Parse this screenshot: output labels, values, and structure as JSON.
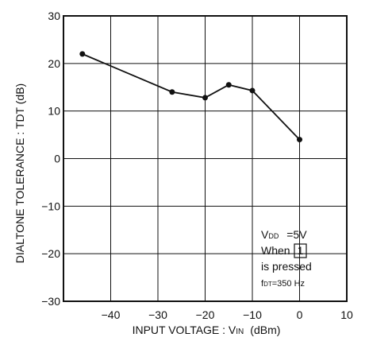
{
  "chart_data": {
    "type": "line",
    "title": "",
    "xlabel": "INPUT VOLTAGE : V",
    "xlabel_sub": "IN",
    "xlabel_unit": "(dBm)",
    "ylabel": "DIALTONE TOLERANCE : TDT  (dB)",
    "xlim": [
      -50,
      10
    ],
    "ylim": [
      -30,
      30
    ],
    "xticks": [
      -40,
      -30,
      -20,
      -10,
      0,
      10
    ],
    "xtick_labels": [
      "−40",
      "−30",
      "−20",
      "−10",
      "0",
      "10"
    ],
    "yticks": [
      30,
      20,
      10,
      0,
      -10,
      -20,
      -30
    ],
    "ytick_labels": [
      "30",
      "20",
      "10",
      "0",
      "−10",
      "−20",
      "−30"
    ],
    "grid": true,
    "series": [
      {
        "x": [
          -46,
          -27,
          -20,
          -15,
          -10,
          0
        ],
        "y": [
          22,
          14,
          12.8,
          15.5,
          14.3,
          4
        ]
      }
    ],
    "annotation": {
      "line1_main": "V",
      "line1_sub": "DD",
      "line1_rest": " =5V",
      "line2": "When",
      "line2_key": "1",
      "line3": "is pressed",
      "line4_main": "f",
      "line4_sub": "DT",
      "line4_rest": "=350 Hz"
    }
  }
}
